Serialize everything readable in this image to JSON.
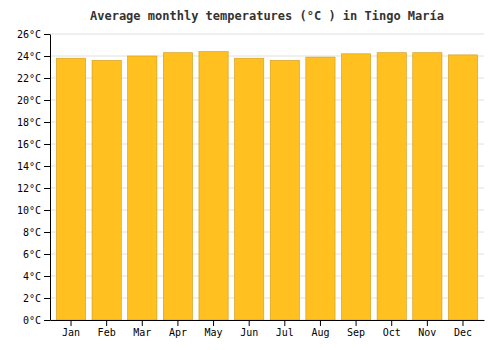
{
  "chart_data": {
    "type": "bar",
    "title": "Average monthly temperatures (°C ) in Tingo María",
    "categories": [
      "Jan",
      "Feb",
      "Mar",
      "Apr",
      "May",
      "Jun",
      "Jul",
      "Aug",
      "Sep",
      "Oct",
      "Nov",
      "Dec"
    ],
    "values": [
      23.8,
      23.6,
      24.0,
      24.3,
      24.4,
      23.8,
      23.6,
      23.9,
      24.2,
      24.3,
      24.3,
      24.1
    ],
    "color": "#FFC020",
    "ylim": [
      0,
      26
    ],
    "yticks": [
      {
        "value": 0,
        "label": "0°C"
      },
      {
        "value": 2,
        "label": "2°C"
      },
      {
        "value": 4,
        "label": "4°C"
      },
      {
        "value": 6,
        "label": "6°C"
      },
      {
        "value": 8,
        "label": "8°C"
      },
      {
        "value": 10,
        "label": "10°C"
      },
      {
        "value": 12,
        "label": "12°C"
      },
      {
        "value": 14,
        "label": "14°C"
      },
      {
        "value": 16,
        "label": "16°C"
      },
      {
        "value": 18,
        "label": "18°C"
      },
      {
        "value": 20,
        "label": "20°C"
      },
      {
        "value": 22,
        "label": "22°C"
      },
      {
        "value": 24,
        "label": "24°C"
      },
      {
        "value": 26,
        "label": "26°C"
      }
    ],
    "grid": true
  }
}
